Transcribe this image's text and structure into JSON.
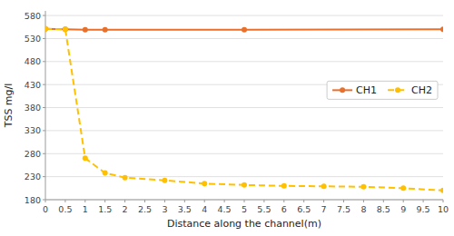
{
  "chart_data": {
    "type": "line",
    "xlabel": "Distance along the channel(m)",
    "ylabel": "TSS mg/l",
    "series": [
      {
        "name": "CH1",
        "color": "#E8702A",
        "marker": "circle",
        "line_style": "solid",
        "x": [
          0,
          0.5,
          1,
          1.5,
          5,
          10
        ],
        "values": [
          551,
          550,
          549,
          549,
          549,
          550
        ]
      },
      {
        "name": "CH2",
        "color": "#FFC000",
        "marker": "circle",
        "line_style": "dashed",
        "x": [
          0,
          0.5,
          1,
          1.5,
          2,
          3,
          4,
          5,
          6,
          7,
          8,
          9,
          10
        ],
        "values": [
          551,
          550,
          270,
          238,
          228,
          222,
          215,
          212,
          210,
          209,
          208,
          205,
          200
        ]
      }
    ],
    "xlim": [
      0,
      10
    ],
    "ylim": [
      180,
      590
    ],
    "xticks": [
      0,
      0.5,
      1,
      1.5,
      2,
      2.5,
      3,
      3.5,
      4,
      4.5,
      5,
      5.5,
      6,
      6.5,
      7,
      7.5,
      8,
      8.5,
      9,
      9.5,
      10
    ],
    "yticks": [
      180,
      230,
      280,
      330,
      380,
      430,
      480,
      530,
      580
    ],
    "grid": "y",
    "legend": "right"
  }
}
